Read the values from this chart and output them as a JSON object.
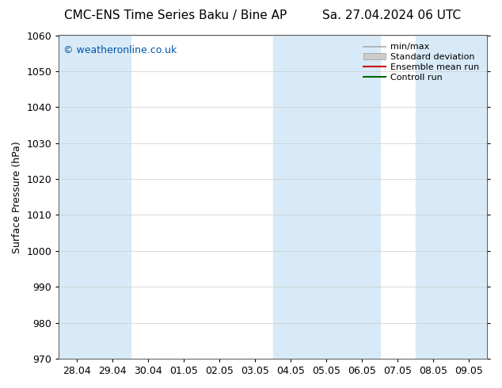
{
  "title_left": "CMC-ENS Time Series Baku / Bine AP",
  "title_right": "Sa. 27.04.2024 06 UTC",
  "ylabel": "Surface Pressure (hPa)",
  "ylim": [
    970,
    1060
  ],
  "ytick_interval": 10,
  "background_color": "#ffffff",
  "plot_bg_color": "#ffffff",
  "watermark": "© weatheronline.co.uk",
  "watermark_color": "#0055aa",
  "legend_items": [
    {
      "label": "min/max",
      "color": "#aaaaaa",
      "lw": 1.2,
      "style": "-"
    },
    {
      "label": "Standard deviation",
      "color": "#cccccc",
      "lw": 8,
      "style": "-"
    },
    {
      "label": "Ensemble mean run",
      "color": "#cc0000",
      "lw": 1.5,
      "style": "-"
    },
    {
      "label": "Controll run",
      "color": "#006600",
      "lw": 1.5,
      "style": "-"
    }
  ],
  "xtick_labels": [
    "28.04",
    "29.04",
    "30.04",
    "01.05",
    "02.05",
    "03.05",
    "04.05",
    "05.05",
    "06.05",
    "07.05",
    "08.05",
    "09.05"
  ],
  "xtick_positions": [
    0,
    1,
    2,
    3,
    4,
    5,
    6,
    7,
    8,
    9,
    10,
    11
  ],
  "shaded_bands_xmin": [
    -0.5,
    0.5,
    5.5,
    6.5,
    7.5,
    9.5
  ],
  "shaded_bands_xmax": [
    0.5,
    1.5,
    6.5,
    7.5,
    8.5,
    11.5
  ],
  "shade_color": "#d8eaf7",
  "grid_color": "#cccccc",
  "spine_color": "#555555",
  "title_fontsize": 11,
  "axis_label_fontsize": 9,
  "tick_fontsize": 9,
  "watermark_fontsize": 9,
  "legend_fontsize": 8
}
